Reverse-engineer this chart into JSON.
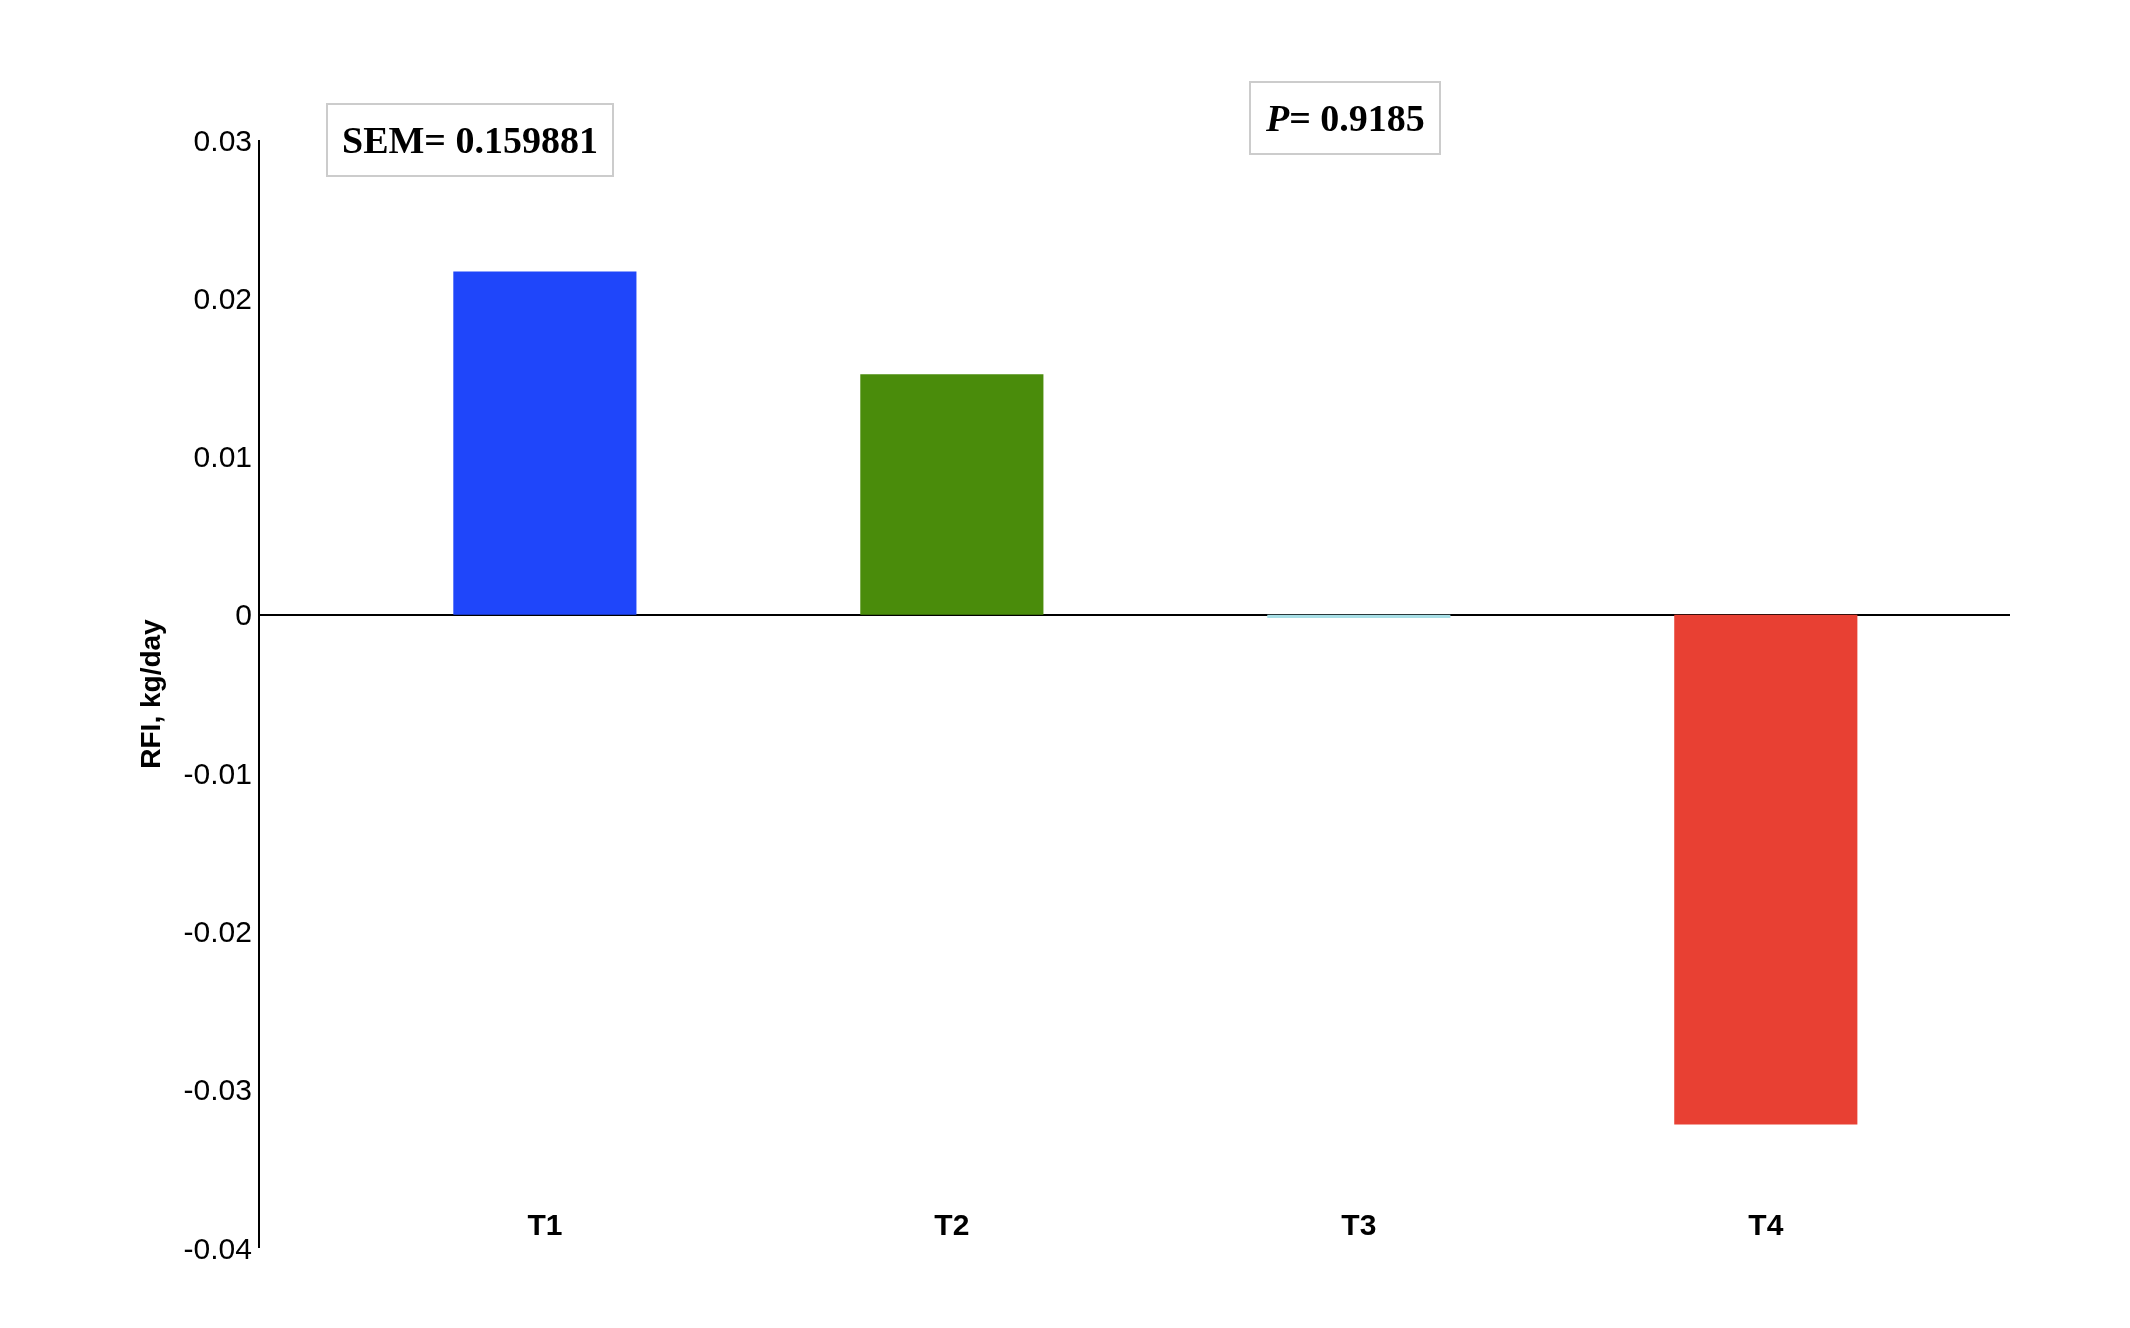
{
  "chart_data": {
    "type": "bar",
    "ylabel": "RFI, kg/day",
    "categories": [
      "T1",
      "T2",
      "T3",
      "T4"
    ],
    "values": [
      0.0217,
      0.0152,
      -0.0002,
      -0.0322
    ],
    "colors": [
      "#1f46fa",
      "#4a8c0b",
      "#a8dfe6",
      "#e84033"
    ],
    "ylim": [
      -0.04,
      0.03
    ],
    "yticks": [
      -0.04,
      -0.03,
      -0.02,
      -0.01,
      0,
      0.01,
      0.02,
      0.03
    ],
    "annotations": [
      "SEM= 0.159881",
      "P= 0.9185"
    ]
  }
}
